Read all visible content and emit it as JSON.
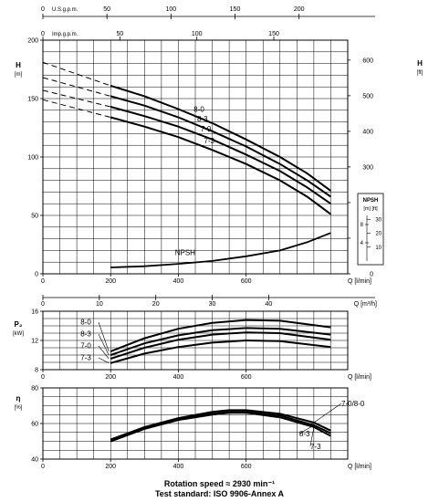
{
  "footer": {
    "line1": "Rotation speed ≈ 2930 min⁻¹",
    "line2": "Test standard: ISO 9906-Annex A"
  },
  "chart_data": [
    {
      "type": "line",
      "panel": "head",
      "ylabel": "H\n[m]",
      "ylabel_right": "H\n[ft]",
      "xlabel": "Q [l/min]",
      "xlim": [
        0,
        900
      ],
      "ylim": [
        0,
        200
      ],
      "ylim_right_ft": [
        0,
        656
      ],
      "xticks": [
        0,
        200,
        400,
        600
      ],
      "yticks": [
        0,
        50,
        100,
        150,
        200
      ],
      "yticks_right": [
        0,
        100,
        200,
        300,
        400,
        500,
        600
      ],
      "top_axis_1": {
        "label": "U.S.g.p.m.",
        "ticks": [
          0,
          50,
          100,
          150,
          200
        ]
      },
      "top_axis_2": {
        "label": "Imp.g.p.m.",
        "ticks": [
          0,
          50,
          100,
          150
        ]
      },
      "bottom_axis_2": {
        "label": "Q [m³/h]",
        "ticks": [
          0,
          10,
          20,
          30,
          40
        ]
      },
      "grid": true,
      "series": [
        {
          "name": "8-0",
          "x": [
            0,
            200,
            300,
            400,
            500,
            600,
            700,
            780,
            850
          ],
          "y": [
            181,
            161,
            152,
            141,
            129,
            115,
            100,
            86,
            71
          ],
          "dashed_until": 200
        },
        {
          "name": "8-3",
          "x": [
            0,
            200,
            300,
            400,
            500,
            600,
            700,
            780,
            850
          ],
          "y": [
            168,
            152,
            144,
            134,
            122,
            109,
            94,
            80,
            66
          ],
          "dashed_until": 200
        },
        {
          "name": "7-0",
          "x": [
            0,
            200,
            300,
            400,
            500,
            600,
            700,
            780,
            850
          ],
          "y": [
            157,
            143,
            135,
            126,
            115,
            102,
            88,
            74,
            60
          ],
          "dashed_until": 200
        },
        {
          "name": "7-3",
          "x": [
            0,
            200,
            300,
            400,
            500,
            600,
            700,
            780,
            850
          ],
          "y": [
            149,
            134,
            126,
            117,
            106,
            94,
            80,
            66,
            51
          ],
          "dashed_until": 200
        }
      ],
      "npsh": {
        "name": "NPSH",
        "x": [
          200,
          300,
          400,
          500,
          600,
          700,
          780,
          850
        ],
        "y": [
          5.5,
          6.5,
          8.5,
          11,
          15,
          20,
          27,
          35
        ],
        "inset_label": "NPSH",
        "inset_units": "[m]  [ft]",
        "inset_ticks_m": [
          4,
          8
        ],
        "inset_ticks_ft": [
          10,
          20,
          30
        ]
      }
    },
    {
      "type": "line",
      "panel": "power",
      "ylabel": "P₂\n[kW]",
      "xlabel": "Q [l/min]",
      "xlim": [
        0,
        900
      ],
      "ylim": [
        8,
        16
      ],
      "xticks": [
        0,
        200,
        400,
        600
      ],
      "yticks": [
        8,
        12,
        16
      ],
      "grid": true,
      "series": [
        {
          "name": "8-0",
          "x": [
            200,
            300,
            400,
            500,
            600,
            700,
            850
          ],
          "y": [
            10.5,
            12.3,
            13.6,
            14.4,
            14.8,
            14.7,
            13.8
          ]
        },
        {
          "name": "8-3",
          "x": [
            200,
            300,
            400,
            500,
            600,
            700,
            850
          ],
          "y": [
            10.0,
            11.6,
            12.7,
            13.4,
            13.7,
            13.6,
            12.8
          ]
        },
        {
          "name": "7-0",
          "x": [
            200,
            300,
            400,
            500,
            600,
            700,
            850
          ],
          "y": [
            9.5,
            11.0,
            12.1,
            12.8,
            13.1,
            13.0,
            12.1
          ]
        },
        {
          "name": "7-3",
          "x": [
            200,
            300,
            400,
            500,
            600,
            700,
            850
          ],
          "y": [
            8.9,
            10.2,
            11.1,
            11.7,
            12.0,
            11.9,
            11.1
          ]
        }
      ]
    },
    {
      "type": "line",
      "panel": "efficiency",
      "ylabel": "η\n[%]",
      "xlabel": "Q [l/min]",
      "xlim": [
        0,
        900
      ],
      "ylim": [
        40,
        80
      ],
      "xticks": [
        0,
        200,
        400,
        600
      ],
      "yticks": [
        40,
        60,
        80
      ],
      "grid": true,
      "series": [
        {
          "name": "7-0/8-0",
          "x": [
            200,
            300,
            400,
            500,
            550,
            600,
            700,
            800,
            850
          ],
          "y": [
            51,
            58,
            63,
            66.5,
            67.5,
            67.5,
            65.5,
            60.5,
            56
          ]
        },
        {
          "name": "8-3",
          "x": [
            200,
            300,
            400,
            500,
            550,
            600,
            700,
            800,
            850
          ],
          "y": [
            50.5,
            57.5,
            62.5,
            65.5,
            66.5,
            66.5,
            64.5,
            59,
            54.5
          ]
        },
        {
          "name": "7-3",
          "x": [
            200,
            300,
            400,
            500,
            550,
            600,
            700,
            800,
            850
          ],
          "y": [
            50,
            57,
            62,
            65,
            66,
            66,
            63.5,
            58,
            53
          ]
        }
      ]
    }
  ]
}
